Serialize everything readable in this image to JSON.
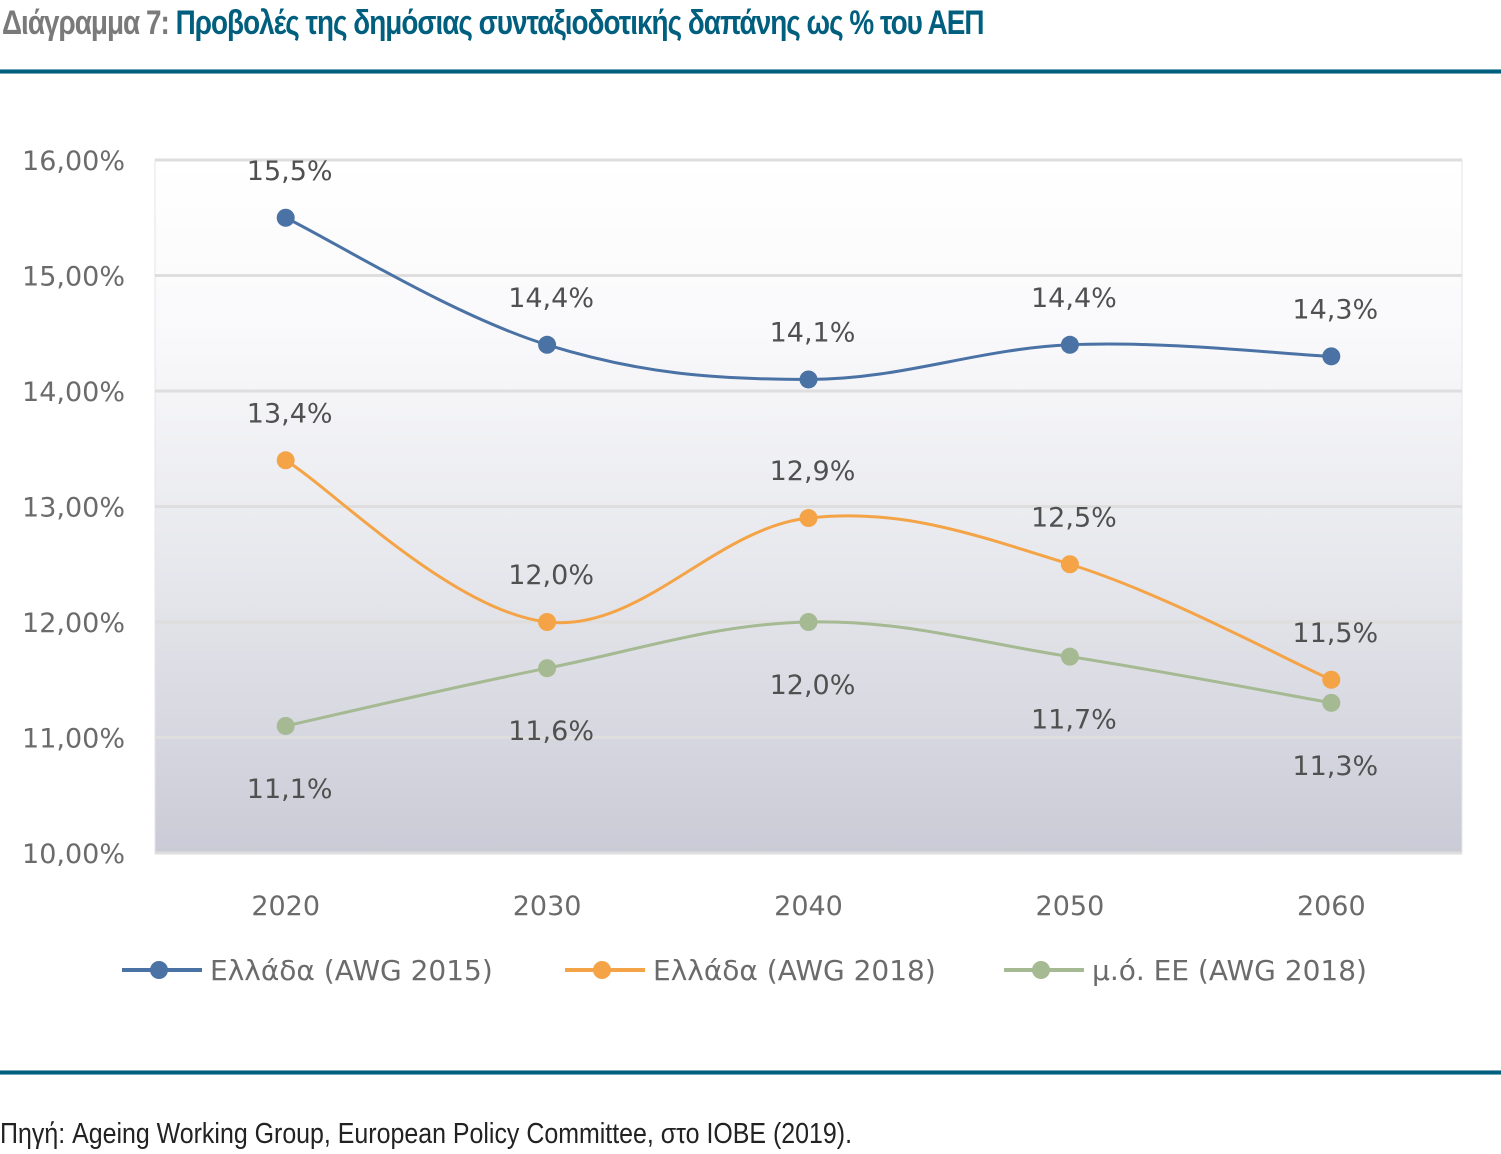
{
  "header": {
    "title_prefix": "Διάγραμμα 7:",
    "title_main": "Προβολές της δημόσιας συνταξιοδοτικής δαπάνης ως % του ΑΕΠ"
  },
  "footer": {
    "source": "Πηγή: Ageing Working Group, European Policy Committee, στο ΙΟΒΕ (2019)."
  },
  "colors": {
    "title_accent": "#005f7f",
    "rule": "#005f7f"
  },
  "chart_data": {
    "type": "line",
    "title": "Προβολές της δημόσιας συνταξιοδοτικής δαπάνης ως % του ΑΕΠ",
    "xlabel": "",
    "ylabel": "",
    "categories": [
      "2020",
      "2030",
      "2040",
      "2050",
      "2060"
    ],
    "ylim": [
      10,
      16
    ],
    "yticks": [
      10,
      11,
      12,
      13,
      14,
      15,
      16
    ],
    "ytick_labels": [
      "10,00%",
      "11,00%",
      "12,00%",
      "13,00%",
      "14,00%",
      "15,00%",
      "16,00%"
    ],
    "grid": true,
    "smooth": true,
    "legend_position": "bottom",
    "series": [
      {
        "name": "Ελλάδα (AWG 2015)",
        "color": "#4a72a5",
        "values": [
          15.5,
          14.4,
          14.1,
          14.4,
          14.3
        ],
        "labels": [
          "15,5%",
          "14,4%",
          "14,1%",
          "14,4%",
          "14,3%"
        ],
        "label_position": "above"
      },
      {
        "name": "Ελλάδα (AWG 2018)",
        "color": "#f4a447",
        "values": [
          13.4,
          12.0,
          12.9,
          12.5,
          11.5
        ],
        "labels": [
          "13,4%",
          "12,0%",
          "12,9%",
          "12,5%",
          "11,5%"
        ],
        "label_position": "above"
      },
      {
        "name": "μ.ό. ΕΕ (AWG 2018)",
        "color": "#a5b993",
        "values": [
          11.1,
          11.6,
          12.0,
          11.7,
          11.3
        ],
        "labels": [
          "11,1%",
          "11,6%",
          "12,0%",
          "11,7%",
          "11,3%"
        ],
        "label_position": "below"
      }
    ]
  }
}
